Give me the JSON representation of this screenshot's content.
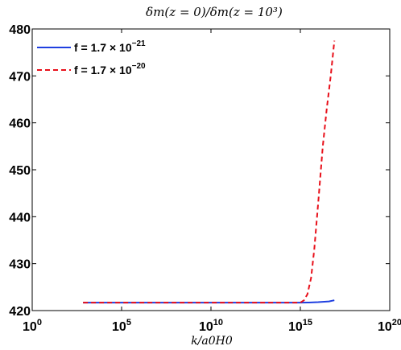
{
  "chart_data": {
    "type": "line",
    "title": "δm(z = 0)/δm(z = 10³)",
    "xlabel": "k/a0H0",
    "ylabel": "",
    "x_scale": "log",
    "xlim": [
      1,
      1e+20
    ],
    "ylim": [
      420,
      480
    ],
    "x_ticks": [
      {
        "value": 1,
        "base": "10",
        "exp": "0"
      },
      {
        "value": 100000.0,
        "base": "10",
        "exp": "5"
      },
      {
        "value": 10000000000.0,
        "base": "10",
        "exp": "10"
      },
      {
        "value": 1000000000000000.0,
        "base": "10",
        "exp": "15"
      },
      {
        "value": 1e+20,
        "base": "10",
        "exp": "20"
      }
    ],
    "y_ticks": [
      "420",
      "430",
      "440",
      "450",
      "460",
      "470",
      "480"
    ],
    "grid": false,
    "legend_position": "top-left",
    "series": [
      {
        "name": "f = 1.7 × 10⁻²¹",
        "legend_base": "f = 1.7 × 10",
        "legend_exp": "−21",
        "color": "#1f3fe0",
        "style": "solid",
        "points": [
          [
            700,
            421.7
          ],
          [
            100000.0,
            421.7
          ],
          [
            10000000000.0,
            421.7
          ],
          [
            100000000000000.0,
            421.7
          ],
          [
            1000000000000000.0,
            421.7
          ],
          [
            3000000000000000.0,
            421.72
          ],
          [
            1e+16,
            421.8
          ],
          [
            4e+16,
            421.95
          ],
          [
            8e+16,
            422.2
          ]
        ]
      },
      {
        "name": "f = 1.7 × 10⁻²⁰",
        "legend_base": "f = 1.7 × 10",
        "legend_exp": "−20",
        "color": "#e8101a",
        "style": "dashed",
        "points": [
          [
            700,
            421.7
          ],
          [
            100000.0,
            421.7
          ],
          [
            10000000000.0,
            421.7
          ],
          [
            1000000000000000.0,
            421.7
          ],
          [
            1600000000000000.0,
            422.2
          ],
          [
            2500000000000000.0,
            423.5
          ],
          [
            4000000000000000.0,
            427
          ],
          [
            6000000000000000.0,
            433
          ],
          [
            1e+16,
            443
          ],
          [
            1.8e+16,
            455
          ],
          [
            3e+16,
            463
          ],
          [
            5e+16,
            470
          ],
          [
            8e+16,
            477.5
          ]
        ]
      }
    ]
  }
}
